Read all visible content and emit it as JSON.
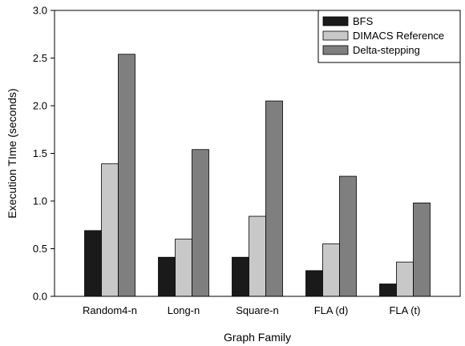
{
  "chart_data": {
    "type": "bar",
    "title": "",
    "xlabel": "Graph Family",
    "ylabel": "Execution TIme (seconds)",
    "ylim": [
      0,
      3.0
    ],
    "yticks": [
      "0.0",
      "0.5",
      "1.0",
      "1.5",
      "2.0",
      "2.5",
      "3.0"
    ],
    "categories": [
      "Random4-n",
      "Long-n",
      "Square-n",
      "FLA (d)",
      "FLA (t)"
    ],
    "series": [
      {
        "name": "BFS",
        "color": "#1a1a1a",
        "values": [
          0.69,
          0.41,
          0.41,
          0.27,
          0.13
        ]
      },
      {
        "name": "DIMACS Reference",
        "color": "#c8c8c8",
        "values": [
          1.39,
          0.6,
          0.84,
          0.55,
          0.36
        ]
      },
      {
        "name": "Delta-stepping",
        "color": "#7f7f7f",
        "values": [
          2.54,
          1.54,
          2.05,
          1.26,
          0.98
        ]
      }
    ],
    "grid": false,
    "legend_position": "top-right"
  }
}
